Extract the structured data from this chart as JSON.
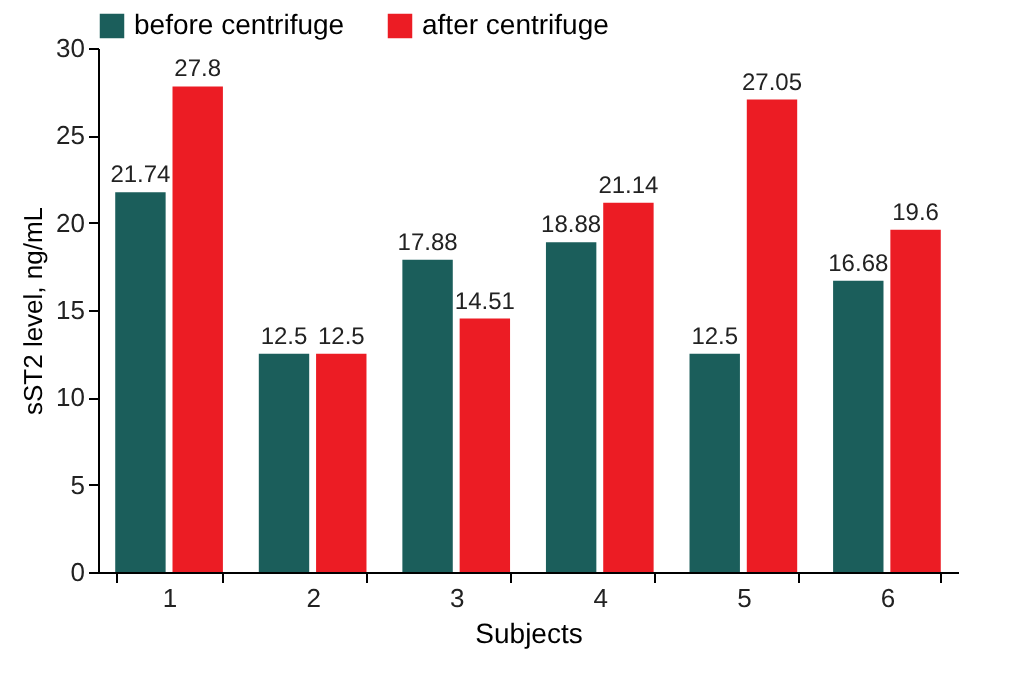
{
  "chart_data": {
    "type": "bar",
    "xlabel": "Subjects",
    "ylabel": "sST2 level, ng/mL",
    "categories": [
      "1",
      "2",
      "3",
      "4",
      "5",
      "6"
    ],
    "series": [
      {
        "name": "before centrifuge",
        "color": "#1b5e5b",
        "values": [
          21.74,
          12.5,
          17.88,
          18.88,
          12.5,
          16.68
        ]
      },
      {
        "name": "after centrifuge",
        "color": "#ec1c24",
        "values": [
          27.8,
          12.5,
          14.51,
          21.14,
          27.05,
          19.6
        ]
      }
    ],
    "ylim": [
      0,
      30
    ],
    "yticks": [
      0,
      5,
      10,
      15,
      20,
      25,
      30
    ],
    "grid": false,
    "legend": "top left",
    "data_labels": true
  }
}
